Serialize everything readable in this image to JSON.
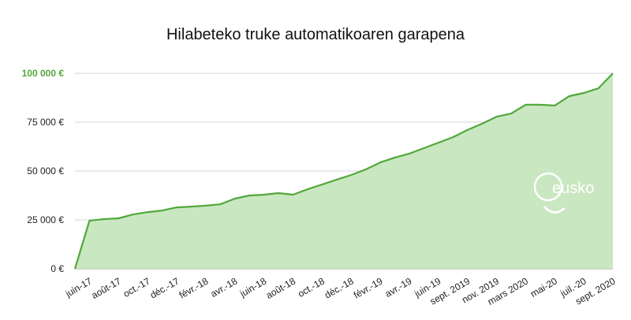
{
  "chart_data": {
    "type": "area",
    "title": "Hilabeteko truke automatikoaren garapena",
    "watermark": "eusko",
    "categories": [
      null,
      "juin-17",
      null,
      "août-17",
      null,
      "oct.-17",
      null,
      "déc.-17",
      null,
      "févr.-18",
      null,
      "avr.-18",
      null,
      "juin-18",
      null,
      "août-18",
      null,
      "oct.-18",
      null,
      "déc.-18",
      null,
      "févr.-19",
      null,
      "avr.-19",
      null,
      "juin-19",
      null,
      "sept. 2019",
      null,
      "nov. 2019",
      null,
      "mars 2020",
      null,
      "mai-20",
      null,
      "juil.-20",
      null,
      "sept. 2020"
    ],
    "values": [
      0,
      24600,
      25400,
      25800,
      27800,
      29000,
      29800,
      31400,
      31800,
      32300,
      33000,
      35900,
      37500,
      37900,
      38700,
      37900,
      40700,
      43100,
      45600,
      48000,
      50800,
      54400,
      56900,
      58900,
      61700,
      64500,
      67300,
      71000,
      74200,
      77800,
      79400,
      83900,
      83900,
      83500,
      88300,
      89900,
      92300,
      100000
    ],
    "color": "#52a83c",
    "fill": "#c9e7c1",
    "ylim": [
      0,
      100000
    ],
    "yticks": [
      {
        "value": 0,
        "label": "0 €"
      },
      {
        "value": 25000,
        "label": "25 000 €"
      },
      {
        "value": 50000,
        "label": "50 000 €"
      },
      {
        "value": 75000,
        "label": "75 000 €"
      },
      {
        "value": 100000,
        "label": "100 000 €"
      }
    ],
    "grid": true
  }
}
